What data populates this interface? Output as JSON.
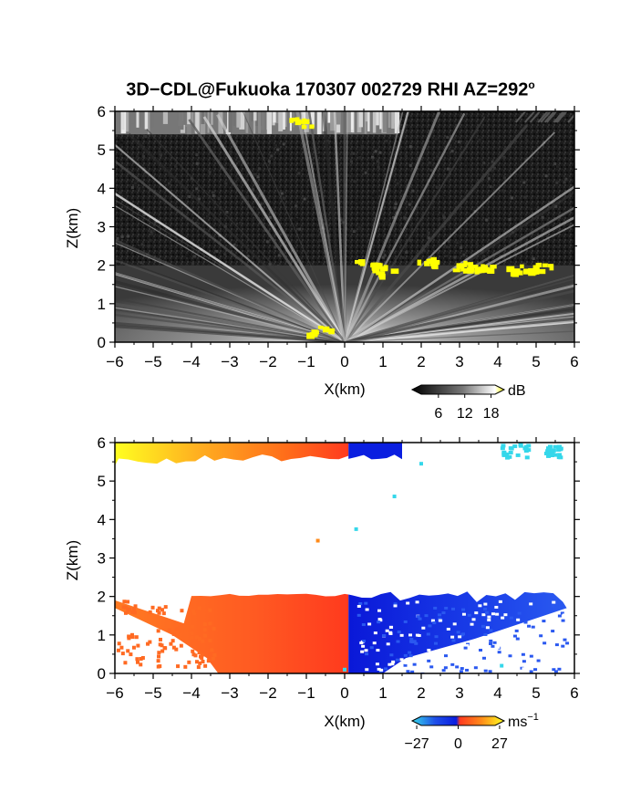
{
  "figure": {
    "title": "3D−CDL@Fukuoka 170307 002729 RHI AZ=292",
    "title_sup": "o"
  },
  "chart_data": [
    {
      "type": "heatmap",
      "name": "reflectivity-panel",
      "xlabel": "X(km)",
      "ylabel": "Z(km)",
      "xlim": [
        -6,
        6
      ],
      "ylim": [
        0,
        6
      ],
      "xticks": [
        "−6",
        "−5",
        "−4",
        "−3",
        "−2",
        "−1",
        "0",
        "1",
        "2",
        "3",
        "4",
        "5",
        "6"
      ],
      "yticks": [
        "0",
        "1",
        "2",
        "3",
        "4",
        "5",
        "6"
      ],
      "colorbar": {
        "label": "dB",
        "ticks": [
          "6",
          "12",
          "18"
        ],
        "range": [
          0,
          21
        ]
      },
      "colors": {
        "low": "#111111",
        "high": "#f2f2f2",
        "highlight": "#ffff00"
      },
      "layers": [
        {
          "kind": "noise",
          "z": [
            2.0,
            5.4
          ],
          "x": [
            -6,
            6
          ],
          "level_db": 3
        },
        {
          "kind": "echo",
          "z": [
            5.4,
            6.0
          ],
          "x": [
            -6,
            1.4
          ],
          "level_db": 11
        },
        {
          "kind": "fan",
          "z": [
            0,
            2.0
          ],
          "x": [
            -6,
            6
          ],
          "level_db": 12
        },
        {
          "kind": "strong",
          "points": [
            [
              -1.2,
              5.75
            ],
            [
              0.5,
              2.05
            ],
            [
              1.0,
              1.9
            ],
            [
              2.2,
              2.1
            ],
            [
              3.0,
              2.0
            ],
            [
              3.5,
              1.95
            ],
            [
              4.5,
              1.95
            ],
            [
              5.1,
              1.95
            ],
            [
              -0.7,
              0.35
            ]
          ]
        }
      ]
    },
    {
      "type": "heatmap",
      "name": "velocity-panel",
      "xlabel": "X(km)",
      "ylabel": "Z(km)",
      "xlim": [
        -6,
        6
      ],
      "ylim": [
        0,
        6
      ],
      "xticks": [
        "−6",
        "−5",
        "−4",
        "−3",
        "−2",
        "−1",
        "0",
        "1",
        "2",
        "3",
        "4",
        "5",
        "6"
      ],
      "yticks": [
        "0",
        "1",
        "2",
        "3",
        "4",
        "5",
        "6"
      ],
      "colorbar": {
        "label": "ms",
        "label_sup": "−1",
        "ticks": [
          "−27",
          "0",
          "27"
        ],
        "range": [
          -30,
          30
        ]
      },
      "colors": {
        "neg_far": "#1f4fe8",
        "neg_near": "#0a1ee0",
        "zero": "#ff3b1f",
        "pos": "#ff8a1a",
        "pos_far": "#ffff20",
        "cyan": "#35d7ea"
      },
      "regions": [
        {
          "name": "upper-left",
          "x": [
            -6,
            0.1
          ],
          "z": [
            5.4,
            6.0
          ],
          "v_start": 27,
          "v_end": 6
        },
        {
          "name": "upper-right",
          "x": [
            0.1,
            1.5
          ],
          "z": [
            5.6,
            6.0
          ],
          "v": -18
        },
        {
          "name": "lower-left",
          "x": [
            -6,
            0.1
          ],
          "z": [
            0,
            2.05
          ],
          "v": 8
        },
        {
          "name": "lower-right",
          "x": [
            0.1,
            6
          ],
          "z": [
            0,
            2.1
          ],
          "v": -17
        }
      ],
      "isolated_points": [
        {
          "x": -0.7,
          "z": 3.45,
          "v": 8
        },
        {
          "x": 0.3,
          "z": 3.75,
          "v": -26
        },
        {
          "x": 1.3,
          "z": 4.6,
          "v": -26
        },
        {
          "x": 2.0,
          "z": 5.45,
          "v": -26
        },
        {
          "x": 4.1,
          "z": 0.2,
          "v": -26
        },
        {
          "x": 0.0,
          "z": 0.1,
          "v": -26
        }
      ],
      "cyan_patches": [
        {
          "x": [
            4.0,
            4.8
          ],
          "z": [
            5.65,
            6.0
          ]
        },
        {
          "x": [
            5.2,
            5.6
          ],
          "z": [
            5.65,
            5.95
          ]
        }
      ]
    }
  ]
}
